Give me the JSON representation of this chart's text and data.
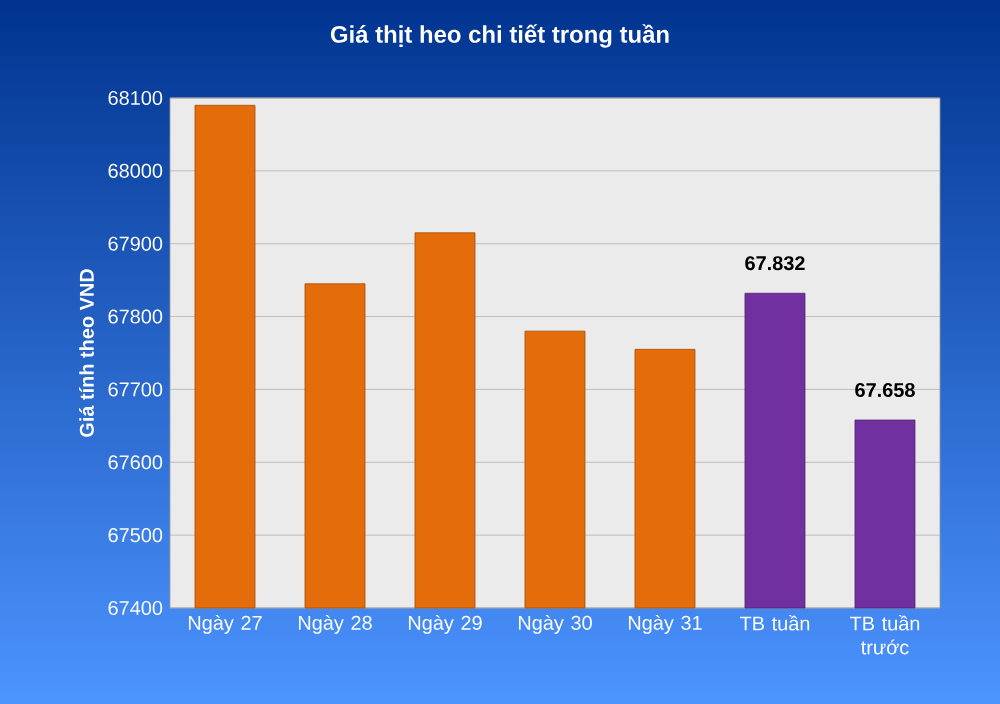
{
  "chart_data": {
    "type": "bar",
    "title": "Giá thịt heo chi tiết trong tuần",
    "ylabel": "Giá tính theo VND",
    "categories": [
      "Ngày 27",
      "Ngày 28",
      "Ngày 29",
      "Ngày 30",
      "Ngày 31",
      "TB tuần",
      "TB tuần trước"
    ],
    "values": [
      68090,
      67845,
      67915,
      67780,
      67755,
      67832,
      67658
    ],
    "colors": [
      "#e46c0a",
      "#e46c0a",
      "#e46c0a",
      "#e46c0a",
      "#e46c0a",
      "#7030a0",
      "#7030a0"
    ],
    "value_labels": [
      null,
      null,
      null,
      null,
      null,
      "67.832",
      "67.658"
    ],
    "ylim": [
      67400,
      68100
    ],
    "yticks": [
      67400,
      67500,
      67600,
      67700,
      67800,
      67900,
      68000,
      68100
    ],
    "grid": "y"
  }
}
